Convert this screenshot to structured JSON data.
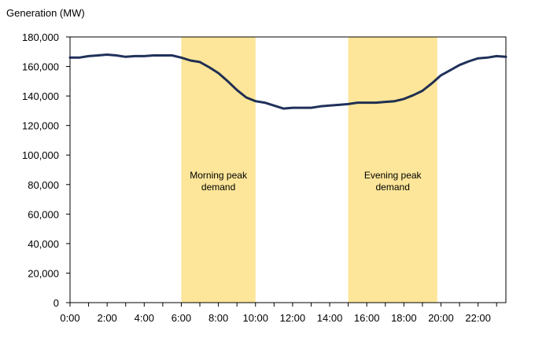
{
  "chart_data": {
    "type": "line",
    "unit_label": "Generation  (MW)",
    "x_ticks": [
      "0:00",
      "2:00",
      "4:00",
      "6:00",
      "8:00",
      "10:00",
      "12:00",
      "14:00",
      "16:00",
      "18:00",
      "20:00",
      "22:00"
    ],
    "y_ticks": [
      "0",
      "20,000",
      "40,000",
      "60,000",
      "80,000",
      "100,000",
      "120,000",
      "140,000",
      "160,000",
      "180,000"
    ],
    "ylim": [
      0,
      180000
    ],
    "xlim_hours": [
      0,
      23.5
    ],
    "grid": false,
    "series": [
      {
        "color": "#0d1f4c",
        "x": [
          0,
          0.5,
          1,
          1.5,
          2,
          2.5,
          3,
          3.5,
          4,
          4.5,
          5,
          5.5,
          6,
          6.5,
          7,
          7.5,
          8,
          8.5,
          9,
          9.5,
          10,
          10.5,
          11,
          11.5,
          12,
          12.5,
          13,
          13.5,
          14,
          14.5,
          15,
          15.5,
          16,
          16.5,
          17,
          17.5,
          18,
          18.5,
          19,
          19.5,
          20,
          20.5,
          21,
          21.5,
          22,
          22.5,
          23,
          23.5
        ],
        "values": [
          166000,
          166000,
          167000,
          167500,
          168000,
          167500,
          166500,
          167000,
          167000,
          167500,
          167500,
          167500,
          166000,
          164000,
          163000,
          159500,
          155500,
          150000,
          144000,
          139000,
          136500,
          135500,
          133500,
          131500,
          132000,
          132000,
          132000,
          133000,
          133500,
          134000,
          134500,
          135500,
          135500,
          135500,
          136000,
          136500,
          138000,
          140500,
          143500,
          148500,
          154000,
          157500,
          161000,
          163500,
          165500,
          166000,
          167000,
          166500
        ]
      }
    ],
    "annotations": [
      {
        "label_lines": [
          "Morning  peak",
          "demand"
        ],
        "x_start": 6.0,
        "x_end": 10.0,
        "color": "#fde699"
      },
      {
        "label_lines": [
          "Evening  peak",
          "demand"
        ],
        "x_start": 15.0,
        "x_end": 19.8,
        "color": "#fde699"
      }
    ]
  }
}
